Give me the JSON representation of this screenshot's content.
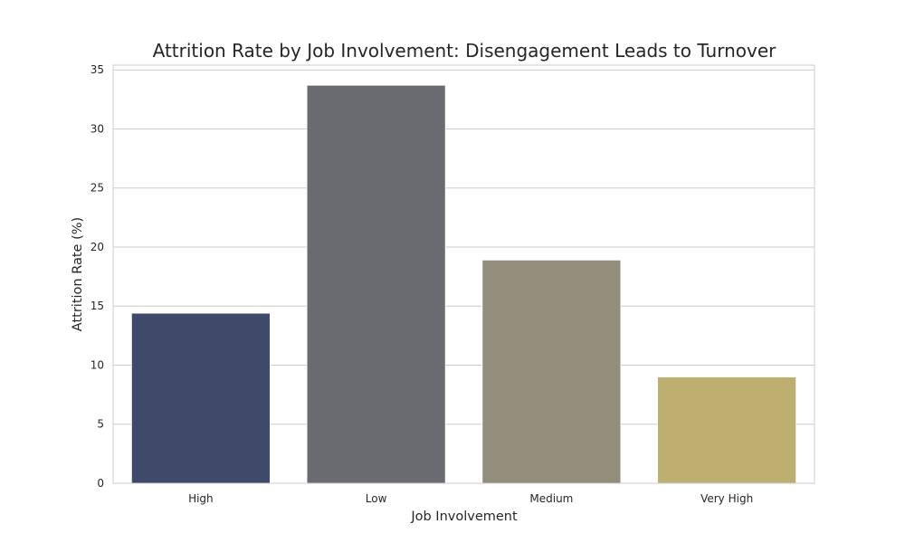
{
  "chart_data": {
    "type": "bar",
    "title": "Attrition Rate by Job Involvement: Disengagement Leads to Turnover",
    "xlabel": "Job Involvement",
    "ylabel": "Attrition Rate (%)",
    "categories": [
      "High",
      "Low",
      "Medium",
      "Very High"
    ],
    "values": [
      14.4,
      33.7,
      18.9,
      9.0
    ],
    "colors": [
      "#3f4a6b",
      "#6a6b70",
      "#938d7b",
      "#bdaf70"
    ],
    "ylim": [
      0,
      35.4
    ],
    "yticks": [
      0,
      5,
      10,
      15,
      20,
      25,
      30,
      35
    ],
    "grid": true,
    "legend": "none"
  }
}
